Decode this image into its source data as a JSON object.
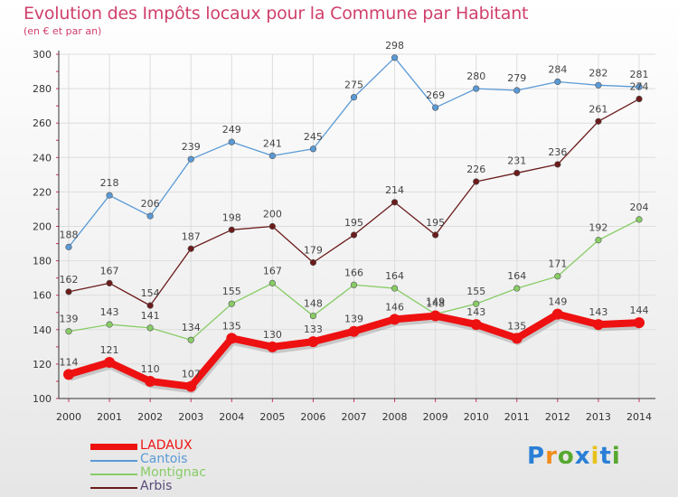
{
  "title": "Evolution des Impôts locaux pour la Commune par Habitant",
  "subtitle": "(en € et par an)",
  "logo": {
    "letters": [
      "P",
      "r",
      "o",
      "x",
      "i",
      "t",
      "i"
    ],
    "colors": [
      "#2a7fd6",
      "#f28c1a",
      "#56a82f",
      "#2a7fd6",
      "#e8c21c",
      "#2a7fd6",
      "#56a82f"
    ]
  },
  "chart_data": {
    "type": "line",
    "x": [
      "2000",
      "2001",
      "2002",
      "2003",
      "2004",
      "2005",
      "2006",
      "2007",
      "2008",
      "2009",
      "2010",
      "2011",
      "2012",
      "2013",
      "2014"
    ],
    "ylim": [
      100,
      300
    ],
    "yticks": [
      "100",
      "120",
      "140",
      "160",
      "180",
      "200",
      "220",
      "240",
      "260",
      "280",
      "300"
    ],
    "grid": true,
    "legend_position": "bottom-left",
    "series": [
      {
        "name": "LADAUX",
        "color": "#ee1111",
        "values": [
          114,
          121,
          110,
          107,
          135,
          130,
          133,
          139,
          146,
          148,
          143,
          135,
          149,
          143,
          144
        ]
      },
      {
        "name": "Cantois",
        "color": "#5a9ad6",
        "values": [
          188,
          218,
          206,
          239,
          249,
          241,
          245,
          275,
          298,
          269,
          280,
          279,
          284,
          282,
          281
        ]
      },
      {
        "name": "Montignac",
        "color": "#88cc66",
        "values": [
          139,
          143,
          141,
          134,
          155,
          167,
          148,
          166,
          164,
          149,
          155,
          164,
          171,
          192,
          204
        ]
      },
      {
        "name": "Arbis",
        "color": "#6b1b1b",
        "values": [
          162,
          167,
          154,
          187,
          198,
          200,
          179,
          195,
          214,
          195,
          226,
          231,
          236,
          261,
          274
        ]
      }
    ]
  }
}
